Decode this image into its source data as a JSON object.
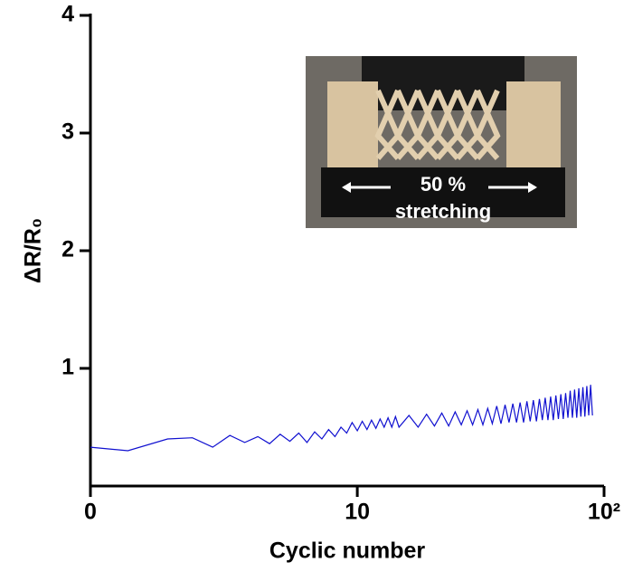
{
  "chart_data": {
    "type": "line",
    "x_label": "Cyclic number",
    "y_label": "ΔR/R₀",
    "x_scale": "log1p",
    "xlim": [
      0,
      100
    ],
    "xticks": [
      0,
      10,
      {
        "value": 100,
        "label": "10²"
      }
    ],
    "ylim": [
      0,
      4
    ],
    "yticks": [
      1,
      2,
      3,
      4
    ],
    "annotations": [
      "50 %",
      "stretching"
    ],
    "series": [
      {
        "color": "#1010d0",
        "x": [
          0,
          0.4,
          1,
          1.5,
          2,
          2.5,
          3,
          3.5,
          4,
          4.5,
          5,
          5.5,
          6,
          6.5,
          7,
          7.5,
          8,
          8.5,
          9,
          9.5,
          10,
          10.5,
          11,
          11.5,
          12,
          12.5,
          13,
          13.5,
          14,
          14.5,
          15,
          16.5,
          18,
          19.5,
          21,
          22.5,
          24,
          25.5,
          27,
          28.5,
          30,
          31.5,
          33,
          34.5,
          36,
          37.5,
          39,
          40.5,
          42,
          43.5,
          45,
          46.5,
          48,
          49.5,
          51,
          52.5,
          54,
          55.5,
          57,
          58.5,
          60,
          61.5,
          63,
          64.5,
          66,
          67.5,
          69,
          70.5,
          72,
          73.5,
          75,
          76.5,
          78,
          79.5,
          81,
          82.5,
          84,
          85.5,
          87,
          88.5,
          90
        ],
        "values": [
          0.33,
          0.3,
          0.4,
          0.41,
          0.33,
          0.43,
          0.37,
          0.42,
          0.36,
          0.44,
          0.38,
          0.45,
          0.37,
          0.46,
          0.4,
          0.48,
          0.42,
          0.5,
          0.45,
          0.54,
          0.47,
          0.55,
          0.48,
          0.56,
          0.49,
          0.57,
          0.5,
          0.58,
          0.5,
          0.59,
          0.5,
          0.6,
          0.5,
          0.61,
          0.51,
          0.62,
          0.51,
          0.63,
          0.52,
          0.64,
          0.52,
          0.65,
          0.52,
          0.66,
          0.53,
          0.68,
          0.53,
          0.69,
          0.54,
          0.7,
          0.54,
          0.71,
          0.54,
          0.72,
          0.55,
          0.73,
          0.55,
          0.74,
          0.56,
          0.75,
          0.56,
          0.76,
          0.56,
          0.77,
          0.57,
          0.78,
          0.57,
          0.79,
          0.58,
          0.81,
          0.58,
          0.82,
          0.58,
          0.83,
          0.59,
          0.84,
          0.59,
          0.85,
          0.6,
          0.86,
          0.6
        ]
      }
    ]
  }
}
